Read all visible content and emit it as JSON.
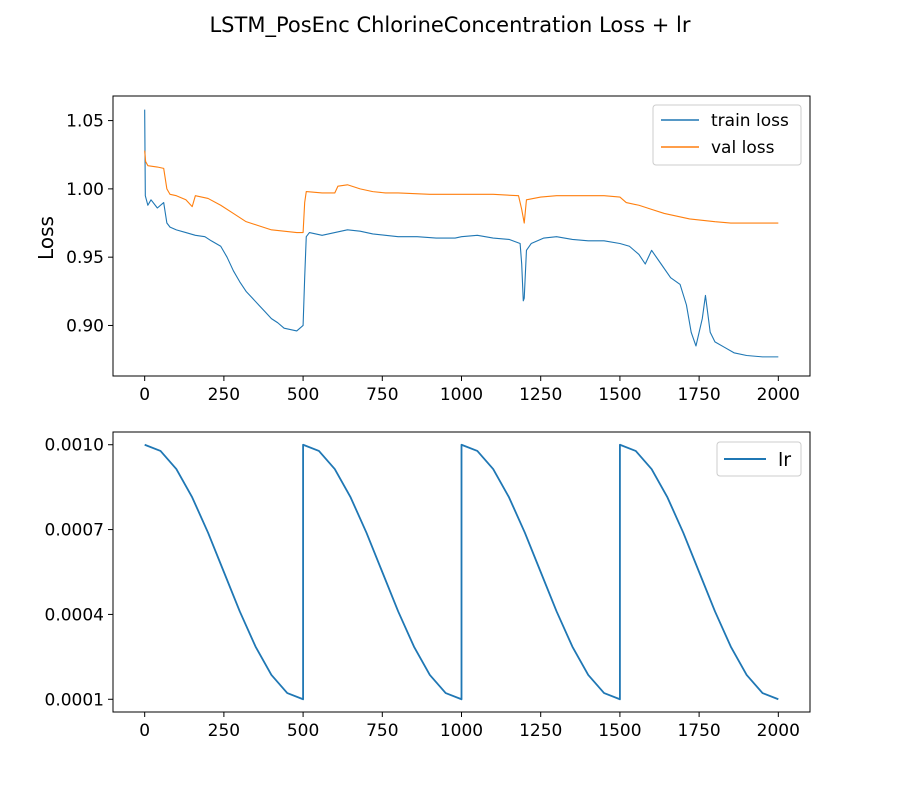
{
  "figure": {
    "title": "LSTM_PosEnc ChlorineConcentration Loss + lr"
  },
  "colors": {
    "train": "#1f77b4",
    "val": "#ff7f0e",
    "lr": "#1f77b4"
  },
  "chart_data": [
    {
      "type": "line",
      "ylabel": "Loss",
      "xlabel": "",
      "xlim": [
        -100,
        2100
      ],
      "ylim": [
        0.863,
        1.068
      ],
      "xticks": [
        0,
        250,
        500,
        750,
        1000,
        1250,
        1500,
        1750,
        2000
      ],
      "xtick_labels": [
        "0",
        "250",
        "500",
        "750",
        "1000",
        "1250",
        "1500",
        "1750",
        "2000"
      ],
      "yticks": [
        0.9,
        0.95,
        1.0,
        1.05
      ],
      "ytick_labels": [
        "0.90",
        "0.95",
        "1.00",
        "1.05"
      ],
      "legend_position": "top-right",
      "series": [
        {
          "name": "train loss",
          "color_key": "train",
          "points": [
            [
              0,
              1.058
            ],
            [
              2,
              0.995
            ],
            [
              10,
              0.988
            ],
            [
              20,
              0.992
            ],
            [
              40,
              0.986
            ],
            [
              60,
              0.99
            ],
            [
              70,
              0.975
            ],
            [
              80,
              0.972
            ],
            [
              100,
              0.97
            ],
            [
              130,
              0.968
            ],
            [
              160,
              0.966
            ],
            [
              190,
              0.965
            ],
            [
              210,
              0.962
            ],
            [
              240,
              0.958
            ],
            [
              260,
              0.95
            ],
            [
              280,
              0.94
            ],
            [
              300,
              0.932
            ],
            [
              320,
              0.925
            ],
            [
              340,
              0.92
            ],
            [
              360,
              0.915
            ],
            [
              380,
              0.91
            ],
            [
              400,
              0.905
            ],
            [
              420,
              0.902
            ],
            [
              440,
              0.898
            ],
            [
              460,
              0.897
            ],
            [
              480,
              0.896
            ],
            [
              500,
              0.9
            ],
            [
              505,
              0.935
            ],
            [
              510,
              0.965
            ],
            [
              520,
              0.968
            ],
            [
              560,
              0.966
            ],
            [
              600,
              0.968
            ],
            [
              640,
              0.97
            ],
            [
              680,
              0.969
            ],
            [
              720,
              0.967
            ],
            [
              760,
              0.966
            ],
            [
              800,
              0.965
            ],
            [
              860,
              0.965
            ],
            [
              920,
              0.964
            ],
            [
              980,
              0.964
            ],
            [
              1000,
              0.965
            ],
            [
              1050,
              0.966
            ],
            [
              1100,
              0.964
            ],
            [
              1150,
              0.963
            ],
            [
              1185,
              0.96
            ],
            [
              1190,
              0.945
            ],
            [
              1195,
              0.918
            ],
            [
              1198,
              0.92
            ],
            [
              1205,
              0.955
            ],
            [
              1220,
              0.96
            ],
            [
              1260,
              0.964
            ],
            [
              1300,
              0.965
            ],
            [
              1350,
              0.963
            ],
            [
              1400,
              0.962
            ],
            [
              1450,
              0.962
            ],
            [
              1500,
              0.96
            ],
            [
              1530,
              0.958
            ],
            [
              1560,
              0.952
            ],
            [
              1580,
              0.945
            ],
            [
              1600,
              0.955
            ],
            [
              1630,
              0.945
            ],
            [
              1660,
              0.935
            ],
            [
              1690,
              0.93
            ],
            [
              1710,
              0.915
            ],
            [
              1725,
              0.895
            ],
            [
              1740,
              0.885
            ],
            [
              1760,
              0.905
            ],
            [
              1770,
              0.922
            ],
            [
              1785,
              0.895
            ],
            [
              1800,
              0.888
            ],
            [
              1830,
              0.884
            ],
            [
              1860,
              0.88
            ],
            [
              1900,
              0.878
            ],
            [
              1950,
              0.877
            ],
            [
              2000,
              0.877
            ]
          ]
        },
        {
          "name": "val loss",
          "color_key": "val",
          "points": [
            [
              0,
              1.028
            ],
            [
              3,
              1.02
            ],
            [
              10,
              1.017
            ],
            [
              40,
              1.016
            ],
            [
              60,
              1.015
            ],
            [
              70,
              1.0
            ],
            [
              80,
              0.996
            ],
            [
              100,
              0.995
            ],
            [
              130,
              0.992
            ],
            [
              150,
              0.987
            ],
            [
              160,
              0.995
            ],
            [
              200,
              0.993
            ],
            [
              240,
              0.988
            ],
            [
              280,
              0.982
            ],
            [
              320,
              0.976
            ],
            [
              360,
              0.973
            ],
            [
              400,
              0.97
            ],
            [
              440,
              0.969
            ],
            [
              480,
              0.968
            ],
            [
              500,
              0.968
            ],
            [
              505,
              0.99
            ],
            [
              510,
              0.998
            ],
            [
              560,
              0.997
            ],
            [
              600,
              0.997
            ],
            [
              610,
              1.002
            ],
            [
              640,
              1.003
            ],
            [
              680,
              1.0
            ],
            [
              720,
              0.998
            ],
            [
              760,
              0.997
            ],
            [
              800,
              0.997
            ],
            [
              900,
              0.996
            ],
            [
              1000,
              0.996
            ],
            [
              1100,
              0.996
            ],
            [
              1180,
              0.995
            ],
            [
              1190,
              0.985
            ],
            [
              1198,
              0.975
            ],
            [
              1205,
              0.992
            ],
            [
              1250,
              0.994
            ],
            [
              1300,
              0.995
            ],
            [
              1400,
              0.995
            ],
            [
              1450,
              0.995
            ],
            [
              1500,
              0.994
            ],
            [
              1520,
              0.99
            ],
            [
              1560,
              0.988
            ],
            [
              1600,
              0.985
            ],
            [
              1640,
              0.982
            ],
            [
              1680,
              0.98
            ],
            [
              1720,
              0.978
            ],
            [
              1760,
              0.977
            ],
            [
              1800,
              0.976
            ],
            [
              1850,
              0.975
            ],
            [
              1900,
              0.975
            ],
            [
              2000,
              0.975
            ]
          ]
        }
      ]
    },
    {
      "type": "line",
      "ylabel": "",
      "xlabel": "",
      "xlim": [
        -100,
        2100
      ],
      "ylim": [
        5.5e-05,
        0.001045
      ],
      "xticks": [
        0,
        250,
        500,
        750,
        1000,
        1250,
        1500,
        1750,
        2000
      ],
      "xtick_labels": [
        "0",
        "250",
        "500",
        "750",
        "1000",
        "1250",
        "1500",
        "1750",
        "2000"
      ],
      "yticks": [
        0.0001,
        0.0004,
        0.0007,
        0.001
      ],
      "ytick_labels": [
        "0.0001",
        "0.0004",
        "0.0007",
        "0.0010"
      ],
      "legend_position": "top-right",
      "series": [
        {
          "name": "lr",
          "color_key": "lr",
          "cycle_length": 500,
          "lr_max": 0.001,
          "lr_min": 0.0001,
          "x_end": 2000,
          "points": [
            [
              0,
              0.001
            ],
            [
              50,
              0.000978
            ],
            [
              100,
              0.000914
            ],
            [
              150,
              0.000814
            ],
            [
              200,
              0.000689
            ],
            [
              250,
              0.00055
            ],
            [
              300,
              0.000411
            ],
            [
              350,
              0.000286
            ],
            [
              400,
              0.000186
            ],
            [
              450,
              0.000122
            ],
            [
              500,
              0.0001
            ],
            [
              500,
              0.001
            ],
            [
              550,
              0.000978
            ],
            [
              600,
              0.000914
            ],
            [
              650,
              0.000814
            ],
            [
              700,
              0.000689
            ],
            [
              750,
              0.00055
            ],
            [
              800,
              0.000411
            ],
            [
              850,
              0.000286
            ],
            [
              900,
              0.000186
            ],
            [
              950,
              0.000122
            ],
            [
              1000,
              0.0001
            ],
            [
              1000,
              0.001
            ],
            [
              1050,
              0.000978
            ],
            [
              1100,
              0.000914
            ],
            [
              1150,
              0.000814
            ],
            [
              1200,
              0.000689
            ],
            [
              1250,
              0.00055
            ],
            [
              1300,
              0.000411
            ],
            [
              1350,
              0.000286
            ],
            [
              1400,
              0.000186
            ],
            [
              1450,
              0.000122
            ],
            [
              1500,
              0.0001
            ],
            [
              1500,
              0.001
            ],
            [
              1550,
              0.000978
            ],
            [
              1600,
              0.000914
            ],
            [
              1650,
              0.000814
            ],
            [
              1700,
              0.000689
            ],
            [
              1750,
              0.00055
            ],
            [
              1800,
              0.000411
            ],
            [
              1850,
              0.000286
            ],
            [
              1900,
              0.000186
            ],
            [
              1950,
              0.000122
            ],
            [
              2000,
              0.0001
            ]
          ]
        }
      ]
    }
  ]
}
